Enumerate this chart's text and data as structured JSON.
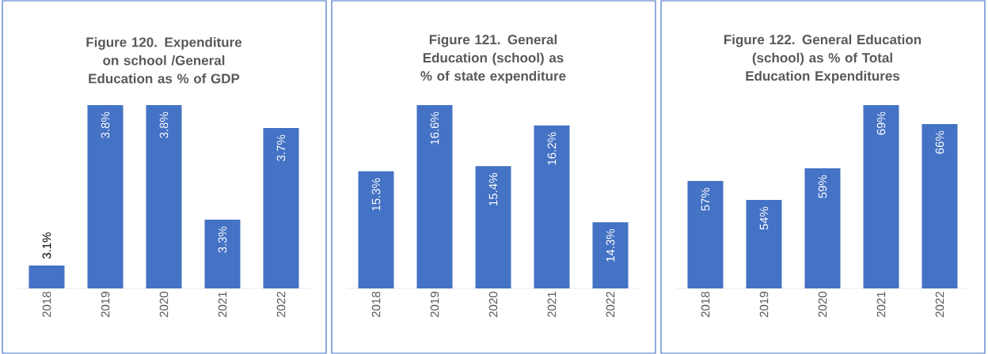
{
  "chart_data": [
    {
      "type": "bar",
      "title": "Figure 120. Expenditure on school /General Education as % of GDP",
      "categories": [
        "2018",
        "2019",
        "2020",
        "2021",
        "2022"
      ],
      "values": [
        3.1,
        3.8,
        3.8,
        3.3,
        3.7
      ],
      "value_labels": [
        "3.1%",
        "3.8%",
        "3.8%",
        "3.3%",
        "3.7%"
      ],
      "color": "#4472c4",
      "ylim": [
        3.0,
        3.8
      ]
    },
    {
      "type": "bar",
      "title": "Figure 121. General Education (school) as % of state expenditure",
      "categories": [
        "2018",
        "2019",
        "2020",
        "2021",
        "2022"
      ],
      "values": [
        15.3,
        16.6,
        15.4,
        16.2,
        14.3
      ],
      "value_labels": [
        "15.3%",
        "16.6%",
        "15.4%",
        "16.2%",
        "14.3%"
      ],
      "color": "#4472c4",
      "ylim": [
        13.0,
        16.6
      ]
    },
    {
      "type": "bar",
      "title": "Figure 122. General Education (school) as % of Total Education Expenditures",
      "categories": [
        "2018",
        "2019",
        "2020",
        "2021",
        "2022"
      ],
      "values": [
        57,
        54,
        59,
        69,
        66
      ],
      "value_labels": [
        "57%",
        "54%",
        "59%",
        "69%",
        "66%"
      ],
      "color": "#4472c4",
      "ylim": [
        40,
        69
      ]
    }
  ]
}
